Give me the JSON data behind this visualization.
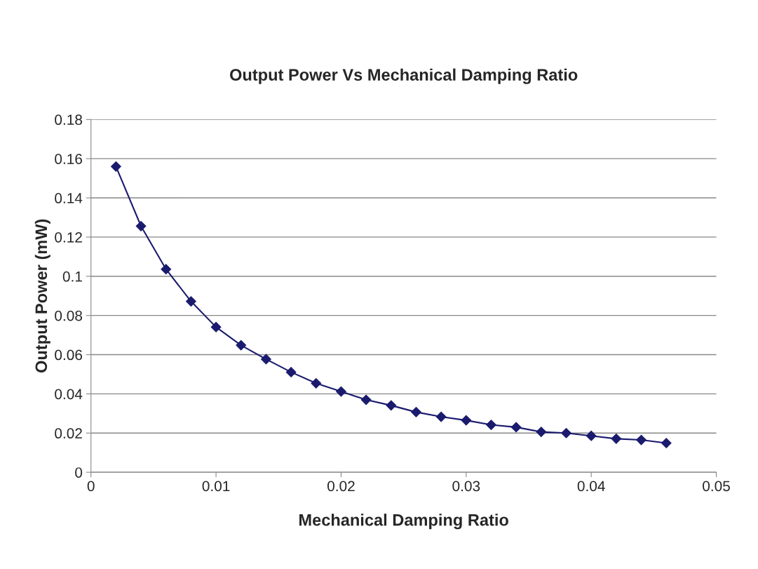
{
  "chart_data": {
    "type": "line",
    "title": "Output Power Vs Mechanical Damping Ratio",
    "xlabel": "Mechanical Damping Ratio",
    "ylabel": "Output Power (mW)",
    "x": [
      0.002,
      0.004,
      0.006,
      0.008,
      0.01,
      0.012,
      0.014,
      0.016,
      0.018,
      0.02,
      0.022,
      0.024,
      0.026,
      0.028,
      0.03,
      0.032,
      0.034,
      0.036,
      0.038,
      0.04,
      0.042,
      0.044,
      0.046
    ],
    "series": [
      {
        "color": "#1a1a6e",
        "values": [
          0.156,
          0.1256,
          0.1036,
          0.0872,
          0.0741,
          0.0648,
          0.0577,
          0.0511,
          0.0454,
          0.0412,
          0.037,
          0.0341,
          0.0307,
          0.0283,
          0.0265,
          0.0242,
          0.023,
          0.0206,
          0.02,
          0.0186,
          0.0171,
          0.0165,
          0.0149
        ]
      }
    ],
    "xlim": [
      0,
      0.05
    ],
    "xticks": [
      0,
      0.01,
      0.02,
      0.03,
      0.04,
      0.05
    ],
    "ylim": [
      0,
      0.18
    ],
    "yticks": [
      0,
      0.02,
      0.04,
      0.06,
      0.08,
      0.1,
      0.12,
      0.14,
      0.16,
      0.18
    ],
    "grid": "y",
    "marker": "diamond",
    "line_style": "solid",
    "legend": false
  }
}
